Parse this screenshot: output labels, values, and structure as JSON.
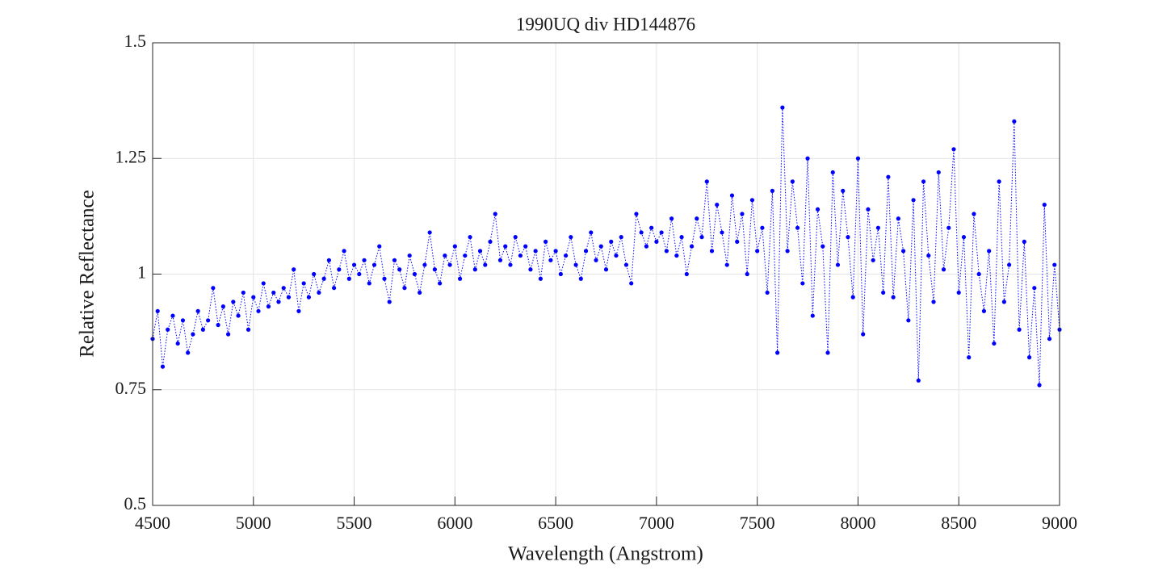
{
  "chart_data": {
    "type": "line",
    "title": "1990UQ div HD144876",
    "xlabel": "Wavelength (Angstrom)",
    "ylabel": "Relative Reflectance",
    "color": "#0000ff",
    "grid": true,
    "markers": true,
    "linestyle": "dotted",
    "xlim": [
      4500,
      9000
    ],
    "xticks": [
      4500,
      5000,
      5500,
      6000,
      6500,
      7000,
      7500,
      8000,
      8500,
      9000
    ],
    "ylim": [
      0.5,
      1.5
    ],
    "yticks": [
      0.5,
      0.75,
      1,
      1.25,
      1.5
    ],
    "x": [
      4500,
      4525,
      4550,
      4575,
      4600,
      4625,
      4650,
      4675,
      4700,
      4725,
      4750,
      4775,
      4800,
      4825,
      4850,
      4875,
      4900,
      4925,
      4950,
      4975,
      5000,
      5025,
      5050,
      5075,
      5100,
      5125,
      5150,
      5175,
      5200,
      5225,
      5250,
      5275,
      5300,
      5325,
      5350,
      5375,
      5400,
      5425,
      5450,
      5475,
      5500,
      5525,
      5550,
      5575,
      5600,
      5625,
      5650,
      5675,
      5700,
      5725,
      5750,
      5775,
      5800,
      5825,
      5850,
      5875,
      5900,
      5925,
      5950,
      5975,
      6000,
      6025,
      6050,
      6075,
      6100,
      6125,
      6150,
      6175,
      6200,
      6225,
      6250,
      6275,
      6300,
      6325,
      6350,
      6375,
      6400,
      6425,
      6450,
      6475,
      6500,
      6525,
      6550,
      6575,
      6600,
      6625,
      6650,
      6675,
      6700,
      6725,
      6750,
      6775,
      6800,
      6825,
      6850,
      6875,
      6900,
      6925,
      6950,
      6975,
      7000,
      7025,
      7050,
      7075,
      7100,
      7125,
      7150,
      7175,
      7200,
      7225,
      7250,
      7275,
      7300,
      7325,
      7350,
      7375,
      7400,
      7425,
      7450,
      7475,
      7500,
      7525,
      7550,
      7575,
      7600,
      7625,
      7650,
      7675,
      7700,
      7725,
      7750,
      7775,
      7800,
      7825,
      7850,
      7875,
      7900,
      7925,
      7950,
      7975,
      8000,
      8025,
      8050,
      8075,
      8100,
      8125,
      8150,
      8175,
      8200,
      8225,
      8250,
      8275,
      8300,
      8325,
      8350,
      8375,
      8400,
      8425,
      8450,
      8475,
      8500,
      8525,
      8550,
      8575,
      8600,
      8625,
      8650,
      8675,
      8700,
      8725,
      8750,
      8775,
      8800,
      8825,
      8850,
      8875,
      8900,
      8925,
      8950,
      8975,
      9000
    ],
    "values": [
      0.86,
      0.92,
      0.8,
      0.88,
      0.91,
      0.85,
      0.9,
      0.83,
      0.87,
      0.92,
      0.88,
      0.9,
      0.97,
      0.89,
      0.93,
      0.87,
      0.94,
      0.91,
      0.96,
      0.88,
      0.95,
      0.92,
      0.98,
      0.93,
      0.96,
      0.94,
      0.97,
      0.95,
      1.01,
      0.92,
      0.98,
      0.95,
      1.0,
      0.96,
      0.99,
      1.03,
      0.97,
      1.01,
      1.05,
      0.99,
      1.02,
      1.0,
      1.03,
      0.98,
      1.02,
      1.06,
      0.99,
      0.94,
      1.03,
      1.01,
      0.97,
      1.04,
      1.0,
      0.96,
      1.02,
      1.09,
      1.01,
      0.98,
      1.04,
      1.02,
      1.06,
      0.99,
      1.04,
      1.08,
      1.01,
      1.05,
      1.02,
      1.07,
      1.13,
      1.03,
      1.06,
      1.02,
      1.08,
      1.04,
      1.06,
      1.01,
      1.05,
      0.99,
      1.07,
      1.03,
      1.05,
      1.0,
      1.04,
      1.08,
      1.02,
      0.99,
      1.05,
      1.09,
      1.03,
      1.06,
      1.01,
      1.07,
      1.04,
      1.08,
      1.02,
      0.98,
      1.13,
      1.09,
      1.06,
      1.1,
      1.07,
      1.09,
      1.05,
      1.12,
      1.04,
      1.08,
      1.0,
      1.06,
      1.12,
      1.08,
      1.2,
      1.05,
      1.15,
      1.09,
      1.02,
      1.17,
      1.07,
      1.13,
      1.0,
      1.16,
      1.05,
      1.1,
      0.96,
      1.18,
      0.83,
      1.36,
      1.05,
      1.2,
      1.1,
      0.98,
      1.25,
      0.91,
      1.14,
      1.06,
      0.83,
      1.22,
      1.02,
      1.18,
      1.08,
      0.95,
      1.25,
      0.87,
      1.14,
      1.03,
      1.1,
      0.96,
      1.21,
      0.95,
      1.12,
      1.05,
      0.9,
      1.16,
      0.77,
      1.2,
      1.04,
      0.94,
      1.22,
      1.01,
      1.1,
      1.27,
      0.96,
      1.08,
      0.82,
      1.13,
      1.0,
      0.92,
      1.05,
      0.85,
      1.2,
      0.94,
      1.02,
      1.33,
      0.88,
      1.07,
      0.82,
      0.97,
      0.76,
      1.15,
      0.86,
      1.02,
      0.88
    ]
  }
}
